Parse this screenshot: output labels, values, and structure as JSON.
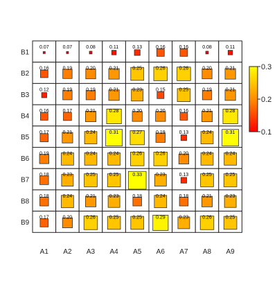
{
  "chart_data": {
    "type": "heatmap",
    "rows": [
      "B1",
      "B2",
      "B3",
      "B4",
      "B5",
      "B6",
      "B7",
      "B8",
      "B9"
    ],
    "columns": [
      "A1",
      "A2",
      "A3",
      "A4",
      "A5",
      "A6",
      "A7",
      "A8",
      "A9"
    ],
    "values": [
      [
        0.07,
        0.07,
        0.08,
        0.11,
        0.13,
        0.16,
        0.16,
        0.08,
        0.11
      ],
      [
        0.16,
        0.19,
        0.2,
        0.21,
        0.25,
        0.26,
        0.26,
        0.2,
        0.21
      ],
      [
        0.12,
        0.19,
        0.19,
        0.21,
        0.23,
        0.15,
        0.25,
        0.19,
        0.21
      ],
      [
        0.16,
        0.17,
        0.21,
        0.28,
        0.2,
        0.2,
        0.16,
        0.21,
        0.28
      ],
      [
        0.17,
        0.21,
        0.24,
        0.31,
        0.27,
        0.19,
        0.13,
        0.24,
        0.31
      ],
      [
        0.19,
        0.24,
        0.24,
        0.24,
        0.26,
        0.26,
        0.2,
        0.24,
        0.24
      ],
      [
        0.18,
        0.23,
        0.25,
        0.25,
        0.33,
        0.23,
        0.13,
        0.25,
        0.25
      ],
      [
        0.18,
        0.24,
        0.21,
        0.23,
        0.18,
        0.24,
        0.18,
        0.21,
        0.23
      ],
      [
        0.17,
        0.2,
        0.26,
        0.25,
        0.25,
        0.29,
        0.23,
        0.26,
        0.25
      ]
    ],
    "labels": [
      [
        "0.07",
        "0.07",
        "0.08",
        "0.11",
        "0.13",
        "0.16",
        "0.16",
        "0.08",
        "0.11"
      ],
      [
        "0.16",
        "0.19",
        "0.20",
        "0.21",
        "0.25",
        "0.26",
        "0.26",
        "0.20",
        "0.21"
      ],
      [
        "0.12",
        "0.19",
        "0.19",
        "0.21",
        "0.23",
        "0.15",
        "0.25",
        "0.19",
        "0.21"
      ],
      [
        "0.16",
        "0.17",
        "0.21",
        "0.28",
        "0.20",
        "0.20",
        "0.16",
        "0.21",
        "0.28"
      ],
      [
        "0.17",
        "0.21",
        "0.24",
        "0.31",
        "0.27",
        "0.19",
        "0.13",
        "0.24",
        "0.31"
      ],
      [
        "0.19",
        "0.24",
        "0.24",
        "0.24",
        "0.26",
        "0.26",
        "0.20",
        "0.24",
        "0.24"
      ],
      [
        "0.18",
        "0.23",
        "0.25",
        "0.25",
        "0.33",
        "0.23",
        "0.13",
        "0.25",
        "0.25"
      ],
      [
        "0.18",
        "0.24",
        "0.21",
        "0.23",
        "0.18",
        "0.24",
        "0.18",
        "0.21",
        "0.23"
      ],
      [
        "0.17",
        "0.20",
        "0.26",
        "0.25",
        "0.25",
        "0.29",
        "0.23",
        "0.26",
        "0.25"
      ]
    ],
    "size_range": [
      0.07,
      0.33
    ],
    "colorbar": {
      "min": 0.1,
      "max": 0.3,
      "ticks": [
        "0.3",
        "0.2",
        "0.1"
      ],
      "tick_values": [
        0.3,
        0.2,
        0.1
      ],
      "colors": [
        "#ff0000",
        "#ff8c00",
        "#ffff00"
      ]
    },
    "title": "",
    "xlabel": "",
    "ylabel": "",
    "grid": true,
    "legend": "right"
  }
}
